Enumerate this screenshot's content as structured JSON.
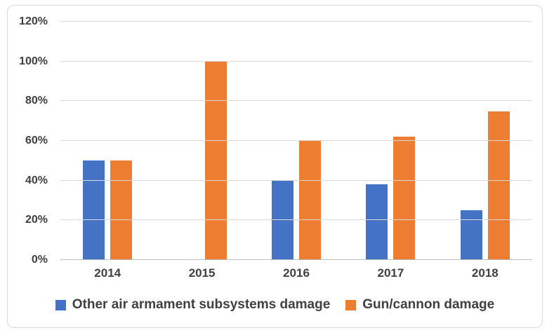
{
  "chart_data": {
    "type": "bar",
    "title": "",
    "xlabel": "",
    "ylabel": "",
    "categories": [
      "2014",
      "2015",
      "2016",
      "2017",
      "2018"
    ],
    "series": [
      {
        "name": "Other air armament subsystems damage",
        "color": "#4472C4",
        "values": [
          50,
          null,
          40,
          38,
          25
        ]
      },
      {
        "name": "Gun/cannon damage",
        "color": "#ED7D31",
        "values": [
          50,
          100,
          60,
          62,
          75
        ]
      }
    ],
    "ylim": [
      0,
      120
    ],
    "y_tick_step": 20,
    "y_tick_labels": [
      "0%",
      "20%",
      "40%",
      "60%",
      "80%",
      "100%",
      "120%"
    ],
    "grid": true,
    "legend_position": "bottom"
  },
  "style": {
    "series_colors": [
      "#4472C4",
      "#ED7D31"
    ],
    "gridline_color": "#D9D9D9",
    "axis_line_color": "#BFBFBF",
    "text_color": "#404040",
    "frame_border_color": "#D9D9D9",
    "background": "#FFFFFF"
  }
}
